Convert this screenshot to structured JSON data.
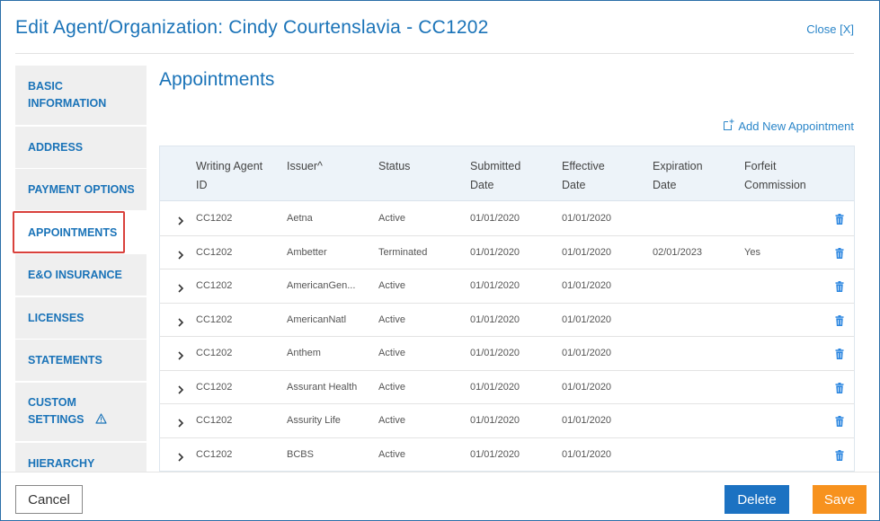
{
  "header": {
    "title": "Edit Agent/Organization: Cindy Courtenslavia - CC1202",
    "close_label": "Close [X]"
  },
  "sidebar": {
    "items": [
      {
        "label": "BASIC INFORMATION"
      },
      {
        "label": "ADDRESS"
      },
      {
        "label": "PAYMENT OPTIONS"
      },
      {
        "label": "APPOINTMENTS"
      },
      {
        "label": "E&O INSURANCE"
      },
      {
        "label": "LICENSES"
      },
      {
        "label": "STATEMENTS"
      },
      {
        "label": "CUSTOM SETTINGS"
      },
      {
        "label": "HIERARCHY"
      }
    ]
  },
  "main": {
    "title": "Appointments",
    "add_label": "Add New Appointment",
    "table": {
      "columns": [
        "Writing Agent ID",
        "Issuer^",
        "Status",
        "Submitted Date",
        "Effective Date",
        "Expiration Date",
        "Forfeit Commission"
      ],
      "rows": [
        {
          "agent_id": "CC1202",
          "issuer": "Aetna",
          "status": "Active",
          "submitted": "01/01/2020",
          "effective": "01/01/2020",
          "expiration": "",
          "forfeit": ""
        },
        {
          "agent_id": "CC1202",
          "issuer": "Ambetter",
          "status": "Terminated",
          "submitted": "01/01/2020",
          "effective": "01/01/2020",
          "expiration": "02/01/2023",
          "forfeit": "Yes"
        },
        {
          "agent_id": "CC1202",
          "issuer": "AmericanGen...",
          "status": "Active",
          "submitted": "01/01/2020",
          "effective": "01/01/2020",
          "expiration": "",
          "forfeit": ""
        },
        {
          "agent_id": "CC1202",
          "issuer": "AmericanNatl",
          "status": "Active",
          "submitted": "01/01/2020",
          "effective": "01/01/2020",
          "expiration": "",
          "forfeit": ""
        },
        {
          "agent_id": "CC1202",
          "issuer": "Anthem",
          "status": "Active",
          "submitted": "01/01/2020",
          "effective": "01/01/2020",
          "expiration": "",
          "forfeit": ""
        },
        {
          "agent_id": "CC1202",
          "issuer": "Assurant Health",
          "status": "Active",
          "submitted": "01/01/2020",
          "effective": "01/01/2020",
          "expiration": "",
          "forfeit": ""
        },
        {
          "agent_id": "CC1202",
          "issuer": "Assurity Life",
          "status": "Active",
          "submitted": "01/01/2020",
          "effective": "01/01/2020",
          "expiration": "",
          "forfeit": ""
        },
        {
          "agent_id": "CC1202",
          "issuer": "BCBS",
          "status": "Active",
          "submitted": "01/01/2020",
          "effective": "01/01/2020",
          "expiration": "",
          "forfeit": ""
        },
        {
          "agent_id": "",
          "issuer": "",
          "status": "",
          "submitted": "",
          "effective": "",
          "expiration": "",
          "forfeit": ""
        }
      ]
    }
  },
  "footer": {
    "cancel_label": "Cancel",
    "delete_label": "Delete",
    "save_label": "Save"
  },
  "colors": {
    "accent": "#1a73b8",
    "delete": "#1c72c2",
    "save": "#f7921e",
    "highlight": "#d9413c",
    "trash": "#2b86e0"
  },
  "icons": {
    "close": "close-x",
    "add": "add-document-icon",
    "warning": "warning-triangle-icon",
    "expand": "chevron-right-icon",
    "delete_row": "trash-icon"
  }
}
